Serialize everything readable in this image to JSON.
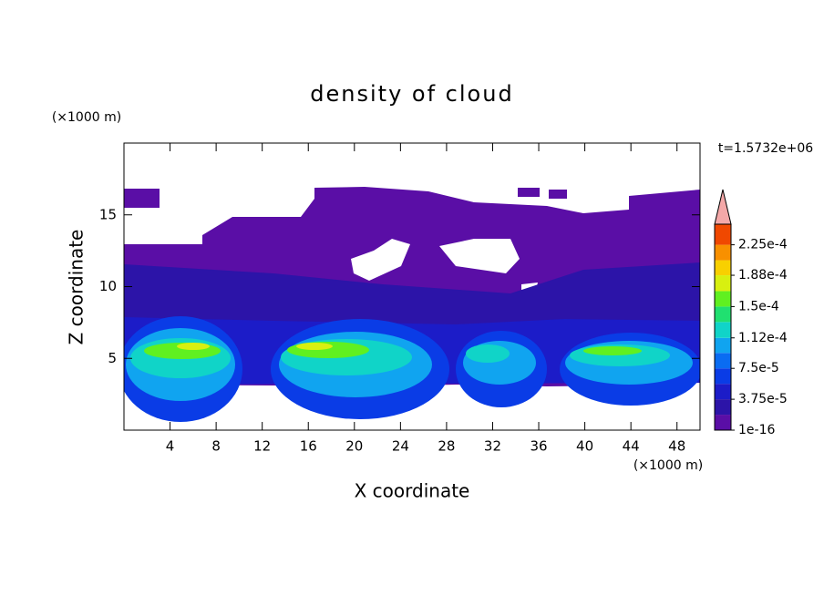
{
  "chart_data": {
    "type": "contour",
    "title": "density of cloud",
    "annotation": "t=1.5732e+06",
    "xlabel": "X coordinate",
    "ylabel": "Z coordinate",
    "xunit": "(×1000 m)",
    "yunit": "(×1000 m)",
    "xlim": [
      0,
      50
    ],
    "ylim": [
      0,
      20
    ],
    "xticks": [
      4,
      8,
      12,
      16,
      20,
      24,
      28,
      32,
      36,
      40,
      44,
      48
    ],
    "yticks": [
      5,
      10,
      15
    ],
    "colorbar": {
      "clim": [
        1e-16,
        0.00025
      ],
      "levels": [
        1e-16,
        1.875e-05,
        3.75e-05,
        5.625e-05,
        7.5e-05,
        9.375e-05,
        0.000112,
        0.00013125,
        0.00015,
        0.00016875,
        0.000188,
        0.00020625,
        0.000225,
        0.00025
      ],
      "colors": [
        "#5a0ea6",
        "#2c14a8",
        "#1c1cc8",
        "#0a3ce6",
        "#0a6cf2",
        "#10a4f0",
        "#10d4c8",
        "#20e070",
        "#60f020",
        "#d8f010",
        "#f8d000",
        "#f89000",
        "#f04800"
      ],
      "extend_color": "#f4a8a8",
      "ticks": [
        {
          "value": 1e-16,
          "label": "1e-16"
        },
        {
          "value": 3.75e-05,
          "label": "3.75e-5"
        },
        {
          "value": 7.5e-05,
          "label": "7.5e-5"
        },
        {
          "value": 0.000112,
          "label": "1.12e-4"
        },
        {
          "value": 0.00015,
          "label": "1.5e-4"
        },
        {
          "value": 0.000188,
          "label": "1.88e-4"
        },
        {
          "value": 0.000225,
          "label": "2.25e-4"
        }
      ]
    }
  }
}
